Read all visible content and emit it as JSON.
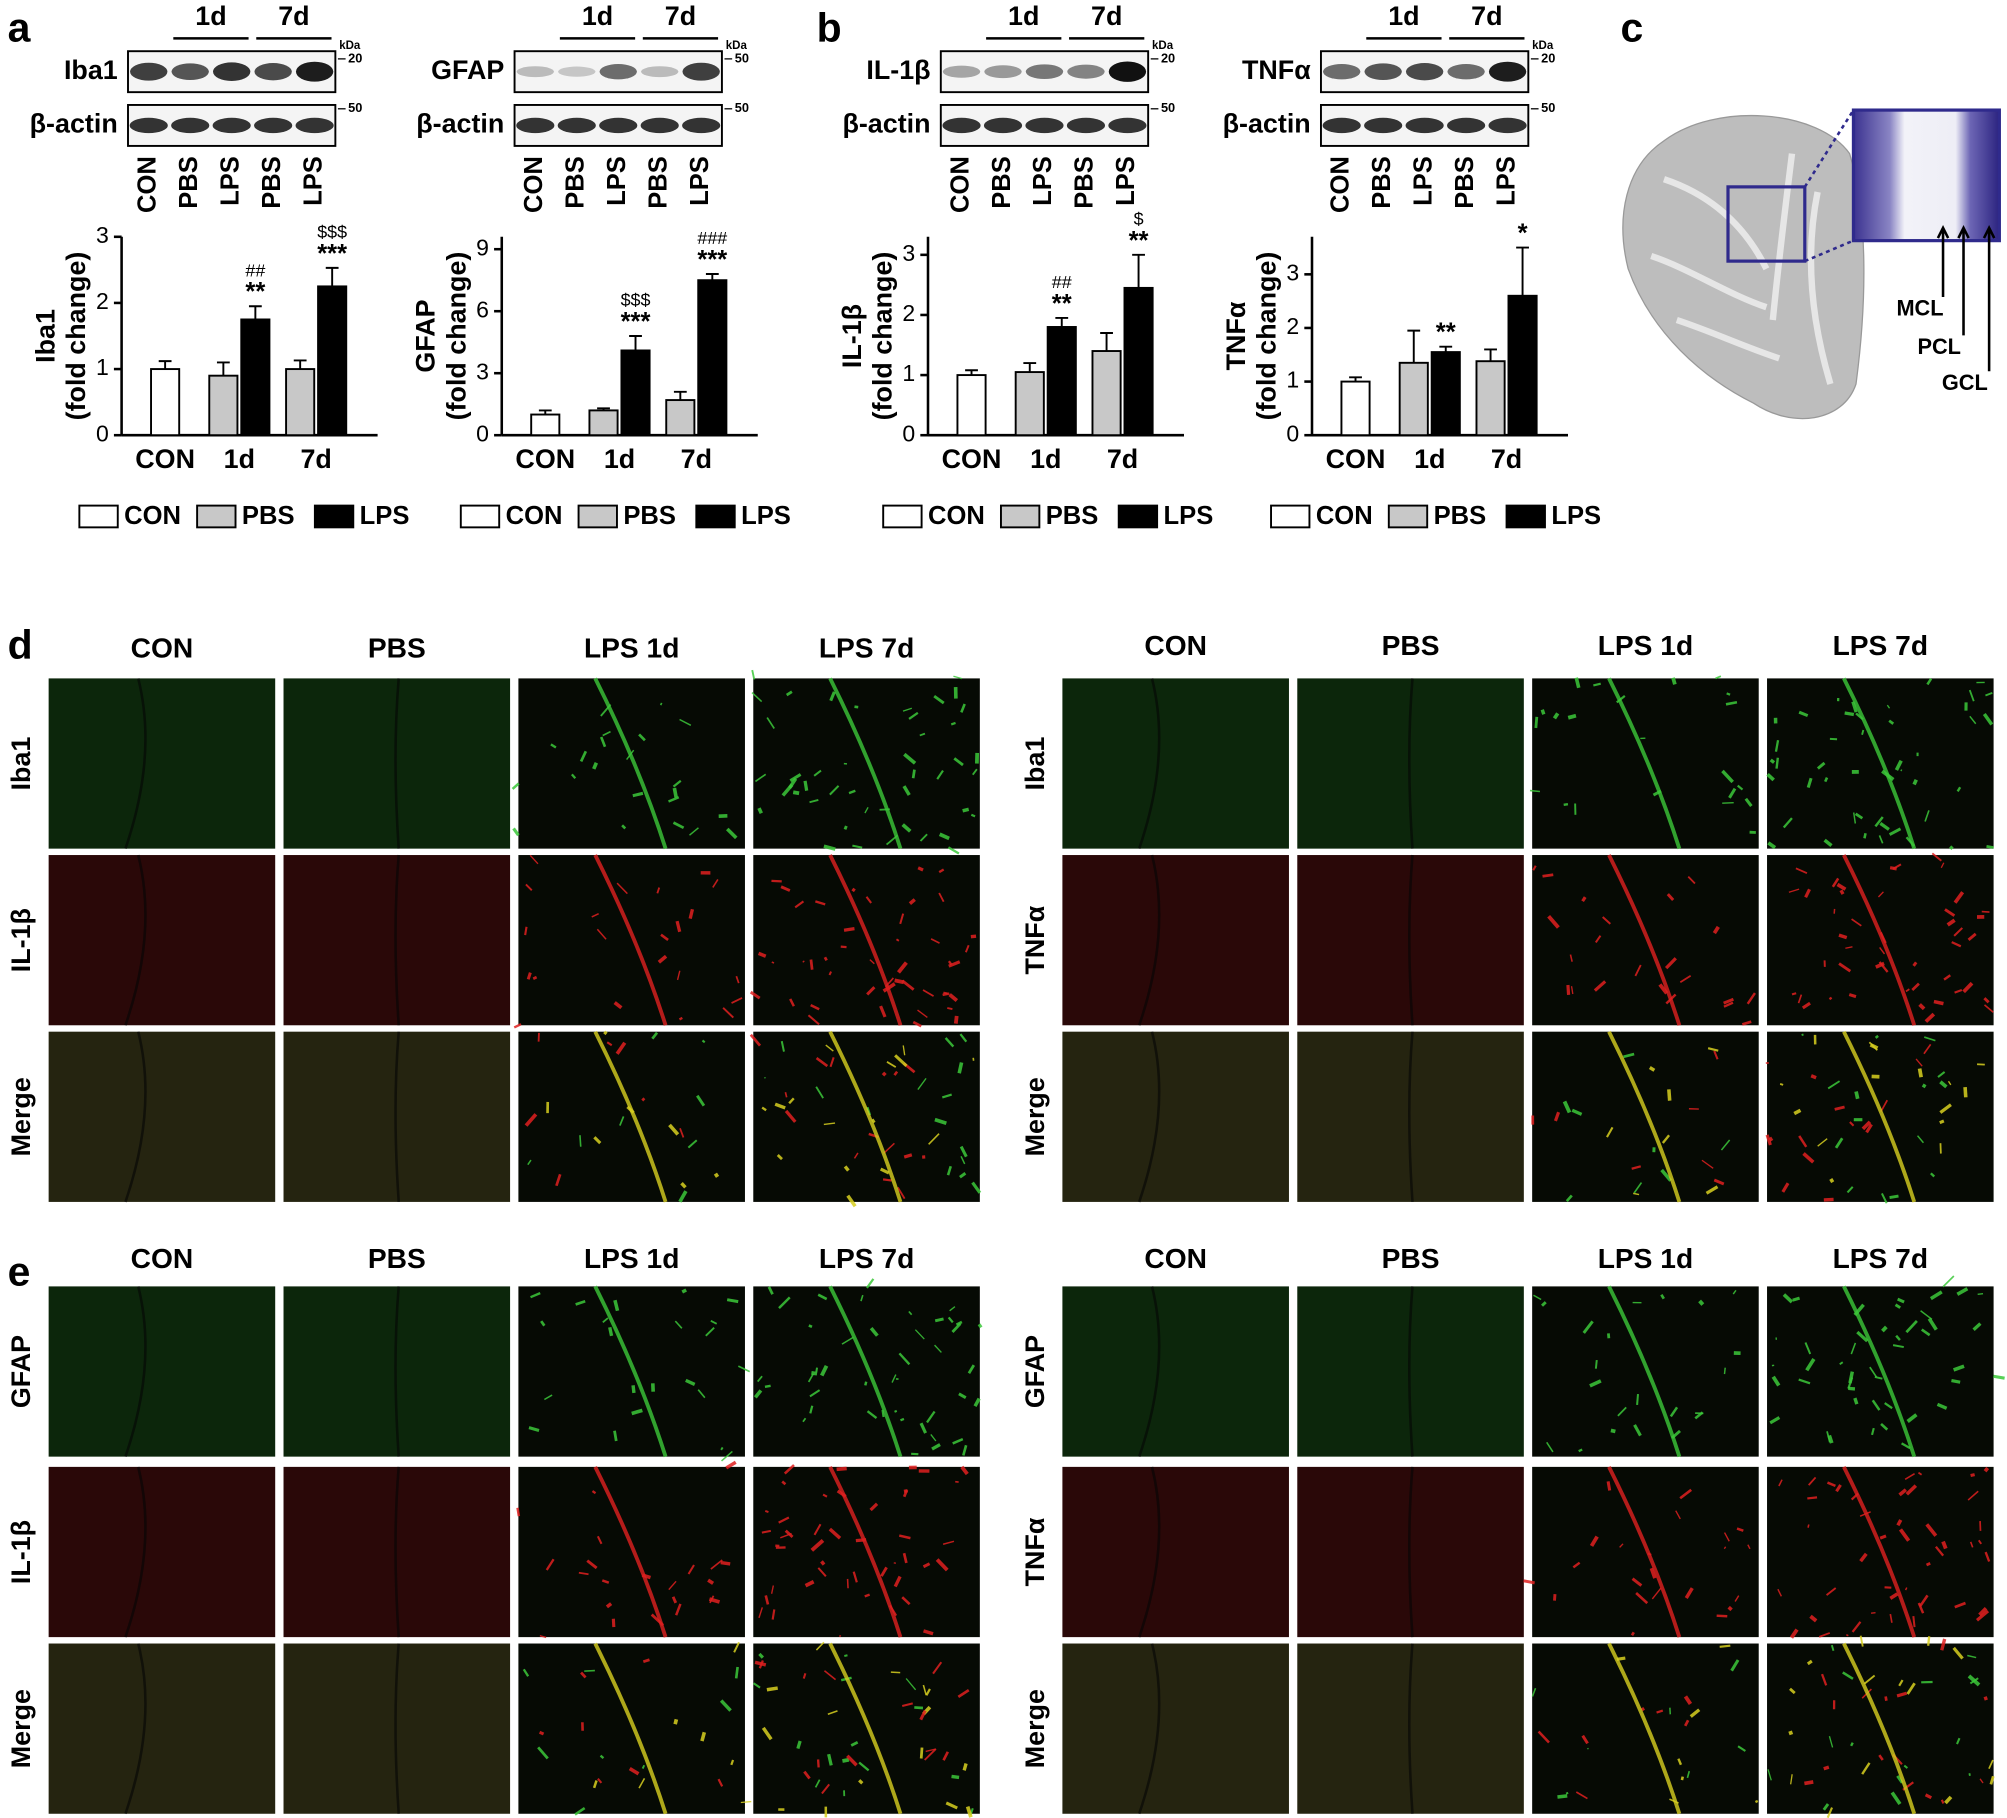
{
  "panel_labels": [
    "a",
    "b",
    "c",
    "d",
    "e"
  ],
  "blots": [
    {
      "target": "Iba1",
      "loading": "β-actin",
      "groups": [
        "1d",
        "7d"
      ],
      "lanes": [
        "CON",
        "PBS",
        "LPS",
        "PBS",
        "LPS"
      ],
      "unit": "kDa",
      "target_marker": "20",
      "loading_marker": "50"
    },
    {
      "target": "GFAP",
      "loading": "β-actin",
      "groups": [
        "1d",
        "7d"
      ],
      "lanes": [
        "CON",
        "PBS",
        "LPS",
        "PBS",
        "LPS"
      ],
      "unit": "kDa",
      "target_marker": "50",
      "loading_marker": "50"
    },
    {
      "target": "IL-1β",
      "loading": "β-actin",
      "groups": [
        "1d",
        "7d"
      ],
      "lanes": [
        "CON",
        "PBS",
        "LPS",
        "PBS",
        "LPS"
      ],
      "unit": "kDa",
      "target_marker": "20",
      "loading_marker": "50"
    },
    {
      "target": "TNFα",
      "loading": "β-actin",
      "groups": [
        "1d",
        "7d"
      ],
      "lanes": [
        "CON",
        "PBS",
        "LPS",
        "PBS",
        "LPS"
      ],
      "unit": "kDa",
      "target_marker": "20",
      "loading_marker": "50"
    }
  ],
  "chart_data": [
    {
      "type": "bar",
      "ylabel": [
        "Iba1",
        "(fold change)"
      ],
      "categories": [
        "CON",
        "1d",
        "7d"
      ],
      "ylim": [
        0,
        3
      ],
      "yticks": [
        0,
        1,
        2,
        3
      ],
      "series": [
        {
          "name": "CON",
          "color": "#ffffff",
          "values": [
            1.0,
            null,
            null
          ],
          "errors": [
            0.12,
            null,
            null
          ],
          "annotations": [
            null,
            null,
            null
          ]
        },
        {
          "name": "PBS",
          "color": "#c8c8c8",
          "values": [
            null,
            0.9,
            1.0
          ],
          "errors": [
            null,
            0.2,
            0.13
          ],
          "annotations": [
            null,
            null,
            null
          ]
        },
        {
          "name": "LPS",
          "color": "#000000",
          "values": [
            null,
            1.75,
            2.25
          ],
          "errors": [
            null,
            0.2,
            0.28
          ],
          "annotations": [
            null,
            [
              "##",
              "**"
            ],
            [
              "$$$",
              "***"
            ]
          ]
        }
      ]
    },
    {
      "type": "bar",
      "ylabel": [
        "GFAP",
        "(fold change)"
      ],
      "categories": [
        "CON",
        "1d",
        "7d"
      ],
      "ylim": [
        0,
        9.6
      ],
      "yticks": [
        0,
        3,
        6,
        9
      ],
      "series": [
        {
          "name": "CON",
          "color": "#ffffff",
          "values": [
            1.0,
            null,
            null
          ],
          "errors": [
            0.2,
            null,
            null
          ],
          "annotations": [
            null,
            null,
            null
          ]
        },
        {
          "name": "PBS",
          "color": "#c8c8c8",
          "values": [
            null,
            1.2,
            1.7
          ],
          "errors": [
            null,
            0.1,
            0.4
          ],
          "annotations": [
            null,
            null,
            null
          ]
        },
        {
          "name": "LPS",
          "color": "#000000",
          "values": [
            null,
            4.1,
            7.5
          ],
          "errors": [
            null,
            0.7,
            0.3
          ],
          "annotations": [
            null,
            [
              "$$$",
              "***"
            ],
            [
              "###",
              "***"
            ]
          ]
        }
      ]
    },
    {
      "type": "bar",
      "ylabel": [
        "IL-1β",
        "(fold change)"
      ],
      "categories": [
        "CON",
        "1d",
        "7d"
      ],
      "ylim": [
        0,
        3.3
      ],
      "yticks": [
        0,
        1,
        2,
        3
      ],
      "series": [
        {
          "name": "CON",
          "color": "#ffffff",
          "values": [
            1.0,
            null,
            null
          ],
          "errors": [
            0.08,
            null,
            null
          ],
          "annotations": [
            null,
            null,
            null
          ]
        },
        {
          "name": "PBS",
          "color": "#c8c8c8",
          "values": [
            null,
            1.05,
            1.4
          ],
          "errors": [
            null,
            0.15,
            0.3
          ],
          "annotations": [
            null,
            null,
            null
          ]
        },
        {
          "name": "LPS",
          "color": "#000000",
          "values": [
            null,
            1.8,
            2.45
          ],
          "errors": [
            null,
            0.15,
            0.55
          ],
          "annotations": [
            null,
            [
              "##",
              "**"
            ],
            [
              "$",
              "**"
            ]
          ]
        }
      ]
    },
    {
      "type": "bar",
      "ylabel": [
        "TNFα",
        "(fold change)"
      ],
      "categories": [
        "CON",
        "1d",
        "7d"
      ],
      "ylim": [
        0,
        3.7
      ],
      "yticks": [
        0,
        1,
        2,
        3
      ],
      "series": [
        {
          "name": "CON",
          "color": "#ffffff",
          "values": [
            1.0,
            null,
            null
          ],
          "errors": [
            0.08,
            null,
            null
          ],
          "annotations": [
            null,
            null,
            null
          ]
        },
        {
          "name": "PBS",
          "color": "#c8c8c8",
          "values": [
            null,
            1.35,
            1.38
          ],
          "errors": [
            null,
            0.6,
            0.22
          ],
          "annotations": [
            null,
            null,
            null
          ]
        },
        {
          "name": "LPS",
          "color": "#000000",
          "values": [
            null,
            1.55,
            2.6
          ],
          "errors": [
            null,
            0.1,
            0.9
          ],
          "annotations": [
            null,
            [
              "**"
            ],
            [
              "*"
            ]
          ]
        }
      ]
    }
  ],
  "schematic": {
    "labels": [
      "MCL",
      "PCL",
      "GCL"
    ]
  },
  "panel_d": [
    {
      "columns": [
        "CON",
        "PBS",
        "LPS 1d",
        "LPS 7d"
      ],
      "rows": [
        "Iba1",
        "IL-1β",
        "Merge"
      ]
    },
    {
      "columns": [
        "CON",
        "PBS",
        "LPS 1d",
        "LPS 7d"
      ],
      "rows": [
        "Iba1",
        "TNFα",
        "Merge"
      ]
    }
  ],
  "panel_e": [
    {
      "columns": [
        "CON",
        "PBS",
        "LPS 1d",
        "LPS 7d"
      ],
      "rows": [
        "GFAP",
        "IL-1β",
        "Merge"
      ]
    },
    {
      "columns": [
        "CON",
        "PBS",
        "LPS 1d",
        "LPS 7d"
      ],
      "rows": [
        "GFAP",
        "TNFα",
        "Merge"
      ]
    }
  ]
}
